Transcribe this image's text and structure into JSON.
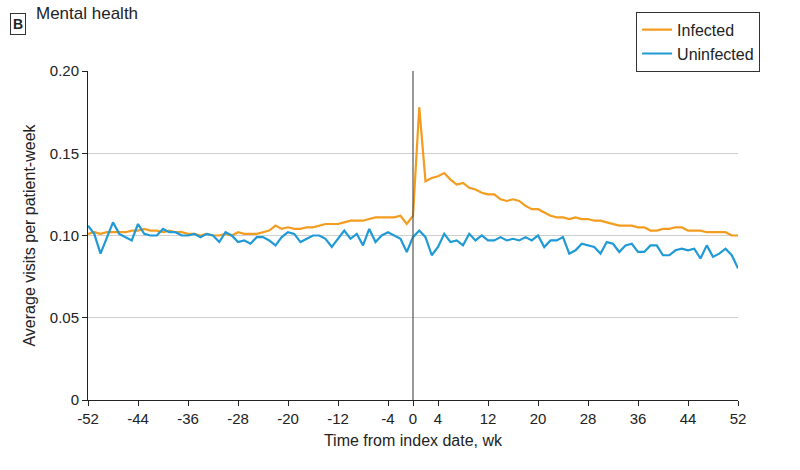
{
  "chart_data": {
    "type": "line",
    "title": "Mental health",
    "annotations": [
      "B"
    ],
    "x_label": "Time from index date, wk",
    "y_label": "Average visits per patient-week",
    "vline": 0,
    "x": [
      -52,
      -51,
      -50,
      -49,
      -48,
      -47,
      -46,
      -45,
      -44,
      -43,
      -42,
      -41,
      -40,
      -39,
      -38,
      -37,
      -36,
      -35,
      -34,
      -33,
      -32,
      -31,
      -30,
      -29,
      -28,
      -27,
      -26,
      -25,
      -24,
      -23,
      -22,
      -21,
      -20,
      -19,
      -18,
      -17,
      -16,
      -15,
      -14,
      -13,
      -12,
      -11,
      -10,
      -9,
      -8,
      -7,
      -6,
      -5,
      -4,
      -3,
      -2,
      -1,
      0,
      1,
      2,
      3,
      4,
      5,
      6,
      7,
      8,
      9,
      10,
      11,
      12,
      13,
      14,
      15,
      16,
      17,
      18,
      19,
      20,
      21,
      22,
      23,
      24,
      25,
      26,
      27,
      28,
      29,
      30,
      31,
      32,
      33,
      34,
      35,
      36,
      37,
      38,
      39,
      40,
      41,
      42,
      43,
      44,
      45,
      46,
      47,
      48,
      49,
      50,
      51,
      52
    ],
    "series": [
      {
        "name": "Infected",
        "color": "#f39c1f",
        "values": [
          0.101,
          0.102,
          0.101,
          0.102,
          0.102,
          0.102,
          0.102,
          0.103,
          0.103,
          0.104,
          0.103,
          0.103,
          0.102,
          0.103,
          0.102,
          0.102,
          0.101,
          0.101,
          0.1,
          0.101,
          0.1,
          0.1,
          0.101,
          0.1,
          0.102,
          0.101,
          0.101,
          0.101,
          0.102,
          0.103,
          0.106,
          0.104,
          0.105,
          0.104,
          0.104,
          0.105,
          0.105,
          0.106,
          0.107,
          0.107,
          0.107,
          0.108,
          0.109,
          0.109,
          0.109,
          0.11,
          0.111,
          0.111,
          0.111,
          0.111,
          0.112,
          0.107,
          0.112,
          0.178,
          0.133,
          0.135,
          0.136,
          0.138,
          0.134,
          0.131,
          0.132,
          0.129,
          0.128,
          0.126,
          0.125,
          0.125,
          0.122,
          0.121,
          0.122,
          0.121,
          0.118,
          0.116,
          0.116,
          0.114,
          0.112,
          0.111,
          0.111,
          0.11,
          0.111,
          0.11,
          0.11,
          0.109,
          0.109,
          0.108,
          0.107,
          0.106,
          0.106,
          0.106,
          0.105,
          0.105,
          0.103,
          0.103,
          0.104,
          0.104,
          0.105,
          0.105,
          0.103,
          0.103,
          0.103,
          0.102,
          0.102,
          0.102,
          0.102,
          0.1,
          0.1
        ]
      },
      {
        "name": "Uninfected",
        "color": "#1f9ad6",
        "values": [
          0.106,
          0.101,
          0.089,
          0.098,
          0.108,
          0.101,
          0.099,
          0.097,
          0.107,
          0.101,
          0.1,
          0.1,
          0.104,
          0.102,
          0.102,
          0.1,
          0.1,
          0.101,
          0.099,
          0.101,
          0.1,
          0.096,
          0.102,
          0.1,
          0.096,
          0.097,
          0.095,
          0.099,
          0.099,
          0.097,
          0.094,
          0.099,
          0.102,
          0.101,
          0.096,
          0.098,
          0.1,
          0.1,
          0.098,
          0.093,
          0.098,
          0.103,
          0.098,
          0.101,
          0.094,
          0.104,
          0.096,
          0.1,
          0.102,
          0.1,
          0.098,
          0.09,
          0.099,
          0.103,
          0.099,
          0.088,
          0.093,
          0.101,
          0.096,
          0.097,
          0.094,
          0.101,
          0.097,
          0.1,
          0.097,
          0.097,
          0.099,
          0.097,
          0.098,
          0.097,
          0.099,
          0.097,
          0.1,
          0.093,
          0.097,
          0.097,
          0.099,
          0.089,
          0.091,
          0.095,
          0.094,
          0.093,
          0.089,
          0.096,
          0.095,
          0.09,
          0.094,
          0.095,
          0.09,
          0.09,
          0.094,
          0.094,
          0.088,
          0.088,
          0.091,
          0.092,
          0.091,
          0.092,
          0.086,
          0.094,
          0.087,
          0.089,
          0.092,
          0.088,
          0.08
        ]
      }
    ],
    "xlim": [
      -52,
      52
    ],
    "xticks": [
      -52,
      -44,
      -36,
      -28,
      -20,
      -12,
      -4,
      0,
      4,
      12,
      20,
      28,
      36,
      44,
      52
    ],
    "ylim": [
      0,
      0.2
    ],
    "yticks": [
      0,
      0.05,
      {
        "value": 0.1,
        "label": "0.10"
      },
      0.15,
      {
        "value": 0.2,
        "label": "0.20"
      }
    ],
    "grid": "y",
    "legend": "top right"
  }
}
